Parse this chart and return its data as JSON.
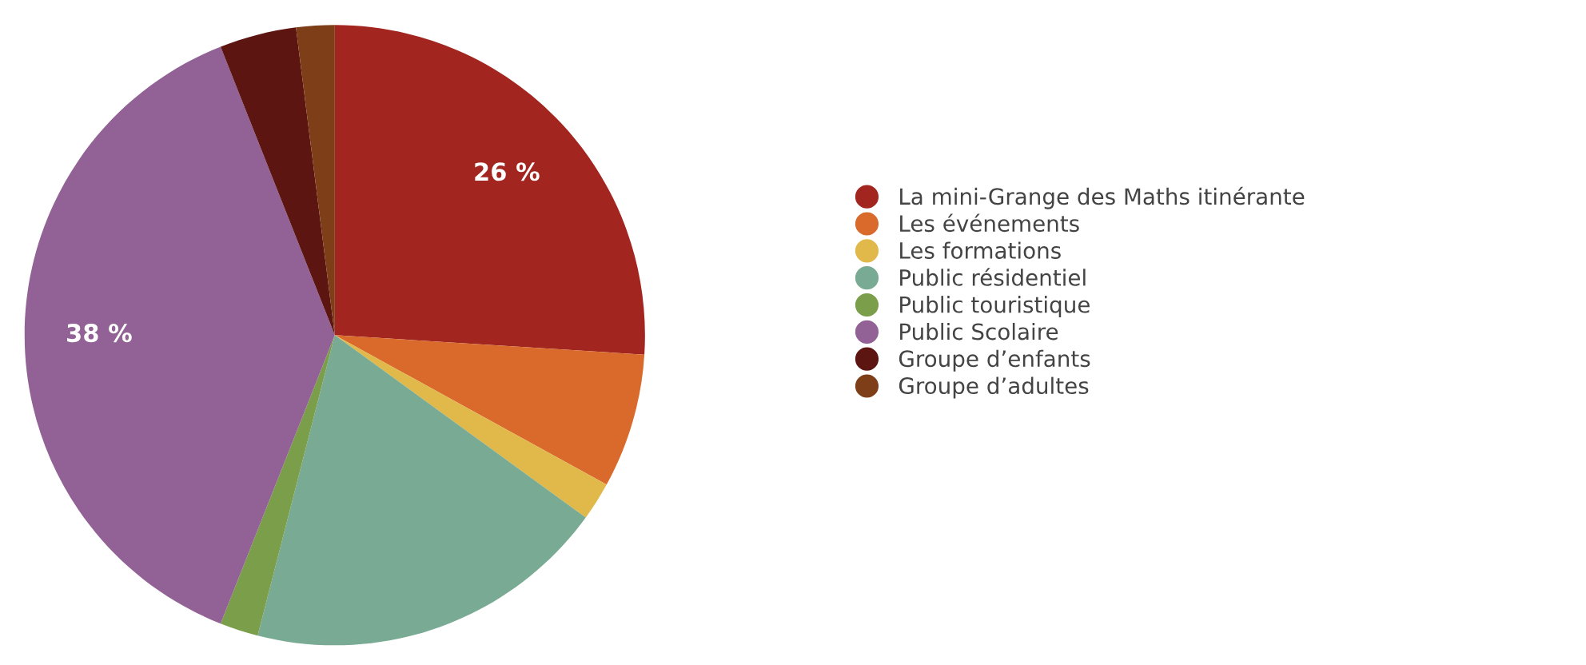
{
  "chart_data": {
    "type": "pie",
    "categories": [
      "La mini-Grange des Maths itinérante",
      "Les événements",
      "Les formations",
      "Public résidentiel",
      "Public touristique",
      "Public Scolaire",
      "Groupe d’enfants",
      "Groupe d’adultes"
    ],
    "values": [
      26,
      7,
      2,
      19,
      2,
      38,
      4,
      2
    ],
    "value_labels": [
      "26 %",
      null,
      null,
      null,
      null,
      "38 %",
      null,
      null
    ],
    "colors": [
      "#a2261f",
      "#d96a2c",
      "#e1b84a",
      "#79aa93",
      "#7a9e4a",
      "#926195",
      "#5c1510",
      "#7e3e18"
    ],
    "legend": "right"
  }
}
